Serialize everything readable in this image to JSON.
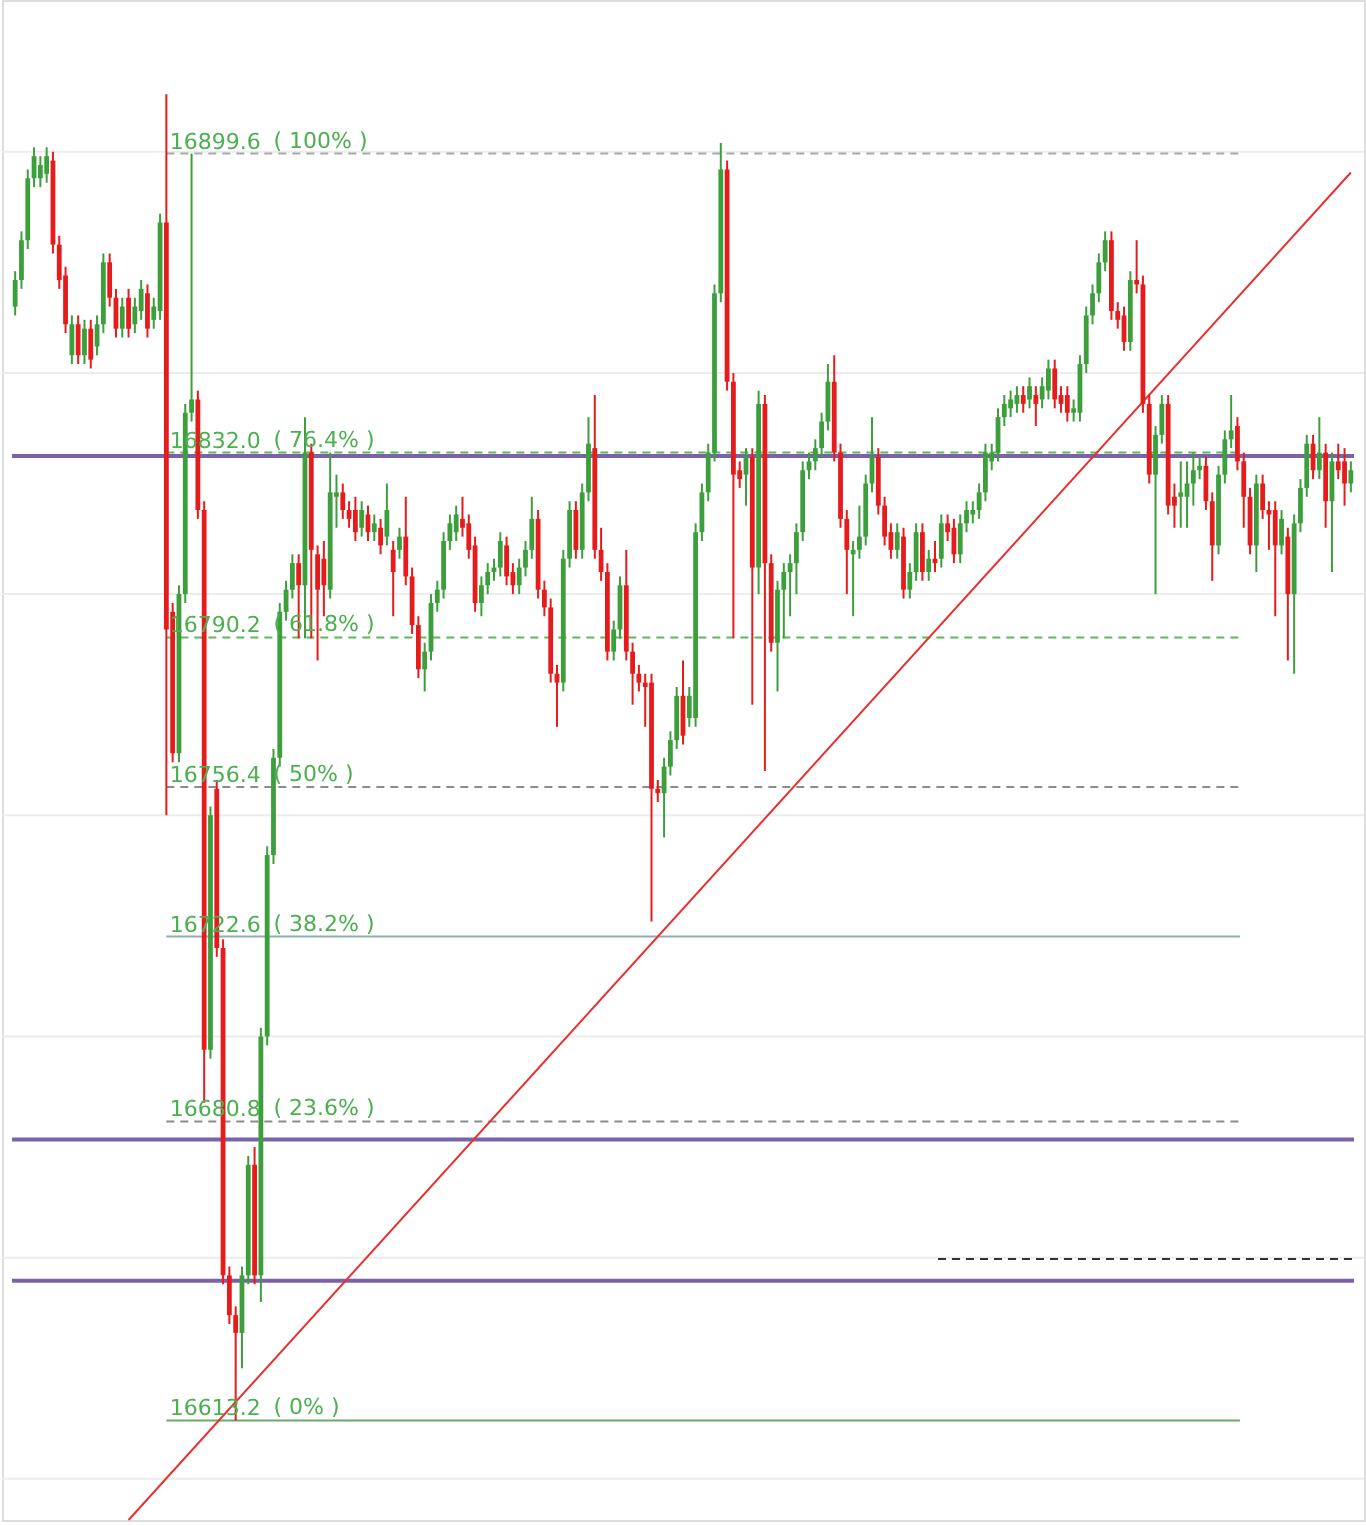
{
  "chart_data": {
    "type": "candlestick",
    "categories": [
      null,
      null,
      null,
      null,
      null,
      null,
      null,
      null,
      null,
      null,
      null,
      null,
      null,
      null,
      null,
      null,
      null,
      null,
      null,
      null,
      null,
      null,
      null,
      null,
      null,
      null,
      null,
      null,
      null,
      null,
      null,
      null,
      null,
      null,
      null,
      null,
      null,
      null,
      null,
      null,
      null,
      null,
      null,
      null,
      null,
      null,
      null,
      null,
      null,
      null,
      null,
      null,
      null,
      null,
      null,
      null,
      null,
      null,
      null,
      null,
      null,
      null,
      null,
      null,
      null,
      null,
      null,
      null,
      null,
      null,
      null,
      null,
      null,
      null,
      null,
      null,
      null,
      null,
      null,
      null,
      null,
      null,
      null,
      null,
      null,
      null,
      null,
      null,
      null,
      null,
      null,
      null,
      null,
      null,
      null,
      null,
      null,
      null,
      null,
      null,
      null,
      null,
      null,
      null,
      null,
      null,
      null,
      null,
      null,
      null,
      null,
      null,
      null,
      null,
      null,
      null,
      null,
      null,
      null,
      null,
      null,
      null,
      null,
      null,
      null,
      null,
      null,
      null,
      null,
      null,
      null,
      null,
      null,
      null,
      null,
      null,
      null,
      null,
      null,
      null,
      null,
      null,
      null,
      null,
      null,
      null,
      null,
      null,
      null,
      null,
      null,
      null,
      null,
      null,
      null,
      null,
      null,
      null,
      null,
      null,
      null,
      null,
      null,
      null,
      null,
      null,
      null,
      null,
      null,
      null,
      null,
      null,
      null,
      null,
      null,
      null,
      null,
      null,
      null,
      null,
      null,
      null,
      null,
      null,
      null,
      null,
      null,
      null,
      null,
      null,
      null,
      null,
      null,
      null,
      null,
      null,
      null,
      null,
      null,
      null,
      null,
      null,
      null,
      null,
      null,
      null,
      null,
      null,
      null,
      null,
      null,
      null,
      null
    ],
    "ohlc": [
      [
        16865,
        16873,
        16863,
        16871
      ],
      [
        16871,
        16882,
        16869,
        16880
      ],
      [
        16880,
        16896,
        16878,
        16894
      ],
      [
        16894,
        16901,
        16892,
        16899
      ],
      [
        16894,
        16899,
        16892,
        16897
      ],
      [
        16895,
        16901,
        16893,
        16899
      ],
      [
        16898,
        16900,
        16877,
        16879
      ],
      [
        16879,
        16881,
        16869,
        16871
      ],
      [
        16872,
        16874,
        16859,
        16861
      ],
      [
        16854,
        16863,
        16852,
        16861
      ],
      [
        16861,
        16863,
        16852,
        16854
      ],
      [
        16854,
        16862,
        16852,
        16860
      ],
      [
        16860,
        16862,
        16851,
        16853
      ],
      [
        16856,
        16863,
        16854,
        16861
      ],
      [
        16861,
        16877,
        16859,
        16875
      ],
      [
        16875,
        16877,
        16865,
        16867
      ],
      [
        16867,
        16869,
        16858,
        16860
      ],
      [
        16860,
        16867,
        16858,
        16865
      ],
      [
        16867,
        16869,
        16858,
        16860
      ],
      [
        16861,
        16867,
        16859,
        16865
      ],
      [
        16864,
        16871,
        16862,
        16869
      ],
      [
        16868,
        16870,
        16858,
        16860
      ],
      [
        16862,
        16867,
        16860,
        16865
      ],
      [
        16864,
        16886,
        16862,
        16884
      ],
      [
        16884,
        16913,
        16750,
        16792
      ],
      [
        16796,
        16798,
        16762,
        16764
      ],
      [
        16764,
        16802,
        16762,
        16800
      ],
      [
        16800,
        16843,
        16798,
        16841
      ],
      [
        16841,
        16899.6,
        16839,
        16844
      ],
      [
        16844,
        16846,
        16817,
        16819
      ],
      [
        16819,
        16821,
        16685,
        16697
      ],
      [
        16697,
        16752,
        16695,
        16750
      ],
      [
        16756,
        16758,
        16718,
        16720
      ],
      [
        16720,
        16722,
        16644,
        16646
      ],
      [
        16646,
        16648,
        16635,
        16637
      ],
      [
        16637,
        16639,
        16613.2,
        16633
      ],
      [
        16633,
        16648,
        16625,
        16646
      ],
      [
        16646,
        16673,
        16644,
        16671
      ],
      [
        16671,
        16675,
        16644,
        16646
      ],
      [
        16646,
        16702,
        16640,
        16700
      ],
      [
        16700,
        16743,
        16698,
        16741
      ],
      [
        16741,
        16765,
        16739,
        16763
      ],
      [
        16763,
        16798,
        16761,
        16796
      ],
      [
        16796,
        16803,
        16794,
        16801
      ],
      [
        16801,
        16809,
        16799,
        16807
      ],
      [
        16807,
        16809,
        16790,
        16802
      ],
      [
        16802,
        16840,
        16790,
        16832
      ],
      [
        16832,
        16834,
        16790,
        16810
      ],
      [
        16809,
        16811,
        16785,
        16801
      ],
      [
        16808,
        16812,
        16795,
        16802
      ],
      [
        16801,
        16832,
        16799,
        16823
      ],
      [
        16822,
        16827,
        16815,
        16823
      ],
      [
        16823,
        16825,
        16817,
        16819
      ],
      [
        16819,
        16821,
        16815,
        16817
      ],
      [
        16819,
        16822,
        16812,
        16814
      ],
      [
        16815,
        16821,
        16813,
        16819
      ],
      [
        16818,
        16820,
        16812,
        16814
      ],
      [
        16814,
        16818,
        16812,
        16816
      ],
      [
        16815,
        16817,
        16809,
        16811
      ],
      [
        16813,
        16825,
        16811,
        16819
      ],
      [
        16810,
        16812,
        16795,
        16805
      ],
      [
        16810,
        16815,
        16808,
        16813
      ],
      [
        16813,
        16822,
        16802,
        16804
      ],
      [
        16804,
        16806,
        16791,
        16793
      ],
      [
        16793,
        16795,
        16781,
        16783
      ],
      [
        16783,
        16789,
        16778,
        16787
      ],
      [
        16787,
        16800,
        16785,
        16798
      ],
      [
        16798,
        16803,
        16796,
        16801
      ],
      [
        16801,
        16814,
        16799,
        16812
      ],
      [
        16812,
        16818,
        16810,
        16816
      ],
      [
        16814,
        16820,
        16812,
        16818
      ],
      [
        16817,
        16822,
        16813,
        16815
      ],
      [
        16816,
        16818,
        16808,
        16810
      ],
      [
        16811,
        16813,
        16796,
        16798
      ],
      [
        16798,
        16804,
        16795,
        16802
      ],
      [
        16802,
        16807,
        16800,
        16805
      ],
      [
        16805,
        16808,
        16803,
        16806
      ],
      [
        16806,
        16814,
        16804,
        16812
      ],
      [
        16811,
        16813,
        16802,
        16804
      ],
      [
        16805,
        16807,
        16800,
        16802
      ],
      [
        16802,
        16808,
        16800,
        16806
      ],
      [
        16806,
        16812,
        16804,
        16810
      ],
      [
        16810,
        16822,
        16808,
        16817
      ],
      [
        16817,
        16819,
        16799,
        16801
      ],
      [
        16801,
        16803,
        16795,
        16797
      ],
      [
        16797,
        16799,
        16780,
        16782
      ],
      [
        16782,
        16784,
        16770,
        16780
      ],
      [
        16780,
        16810,
        16778,
        16808
      ],
      [
        16808,
        16821,
        16806,
        16819
      ],
      [
        16819,
        16821,
        16808,
        16810
      ],
      [
        16810,
        16825,
        16808,
        16823
      ],
      [
        16823,
        16840,
        16821,
        16834
      ],
      [
        16833,
        16845,
        16808,
        16810
      ],
      [
        16810,
        16815,
        16803,
        16805
      ],
      [
        16805,
        16807,
        16785,
        16787
      ],
      [
        16787,
        16794,
        16785,
        16792
      ],
      [
        16792,
        16804,
        16790,
        16802
      ],
      [
        16802,
        16810,
        16785,
        16787
      ],
      [
        16787,
        16789,
        16775,
        16782
      ],
      [
        16782,
        16784,
        16778,
        16780
      ],
      [
        16780,
        16782,
        16770,
        16779
      ],
      [
        16780,
        16782,
        16726,
        16756
      ],
      [
        16756,
        16758,
        16753,
        16755
      ],
      [
        16755,
        16763,
        16745,
        16761
      ],
      [
        16761,
        16769,
        16759,
        16767
      ],
      [
        16767,
        16779,
        16765,
        16777
      ],
      [
        16777,
        16785,
        16766,
        16768
      ],
      [
        16772,
        16779,
        16770,
        16777
      ],
      [
        16772,
        16816,
        16770,
        16814
      ],
      [
        16814,
        16825,
        16812,
        16823
      ],
      [
        16823,
        16834,
        16821,
        16832
      ],
      [
        16832,
        16870,
        16830,
        16868
      ],
      [
        16868,
        16902,
        16866,
        16896
      ],
      [
        16896,
        16898,
        16846,
        16848
      ],
      [
        16848,
        16850,
        16790,
        16827
      ],
      [
        16828,
        16830,
        16824,
        16826
      ],
      [
        16827,
        16833,
        16820,
        16831
      ],
      [
        16831,
        16833,
        16775,
        16806
      ],
      [
        16806,
        16846,
        16800,
        16843
      ],
      [
        16843,
        16845,
        16760,
        16807
      ],
      [
        16807,
        16809,
        16787,
        16789
      ],
      [
        16789,
        16803,
        16778,
        16801
      ],
      [
        16801,
        16807,
        16790,
        16805
      ],
      [
        16805,
        16809,
        16795,
        16807
      ],
      [
        16807,
        16816,
        16800,
        16814
      ],
      [
        16814,
        16830,
        16812,
        16828
      ],
      [
        16828,
        16832,
        16826,
        16830
      ],
      [
        16830,
        16835,
        16828,
        16833
      ],
      [
        16833,
        16841,
        16831,
        16839
      ],
      [
        16839,
        16852,
        16837,
        16848
      ],
      [
        16848,
        16854,
        16830,
        16832
      ],
      [
        16832,
        16834,
        16815,
        16817
      ],
      [
        16817,
        16819,
        16800,
        16810
      ],
      [
        16809,
        16812,
        16795,
        16810
      ],
      [
        16810,
        16820,
        16808,
        16813
      ],
      [
        16813,
        16827,
        16811,
        16825
      ],
      [
        16825,
        16840,
        16823,
        16831
      ],
      [
        16831,
        16833,
        16818,
        16820
      ],
      [
        16820,
        16822,
        16811,
        16813
      ],
      [
        16814,
        16816,
        16808,
        16810
      ],
      [
        16810,
        16816,
        16808,
        16814
      ],
      [
        16813,
        16815,
        16799,
        16801
      ],
      [
        16801,
        16807,
        16799,
        16805
      ],
      [
        16805,
        16816,
        16803,
        16814
      ],
      [
        16814,
        16816,
        16803,
        16805
      ],
      [
        16805,
        16810,
        16803,
        16808
      ],
      [
        16808,
        16812,
        16805,
        16807
      ],
      [
        16808,
        16818,
        16806,
        16816
      ],
      [
        16816,
        16818,
        16812,
        16814
      ],
      [
        16815,
        16817,
        16807,
        16809
      ],
      [
        16809,
        16818,
        16807,
        16816
      ],
      [
        16816,
        16821,
        16814,
        16819
      ],
      [
        16818,
        16821,
        16816,
        16819
      ],
      [
        16819,
        16825,
        16817,
        16823
      ],
      [
        16823,
        16834,
        16821,
        16832
      ],
      [
        16830,
        16834,
        16828,
        16832
      ],
      [
        16832,
        16842,
        16830,
        16840
      ],
      [
        16840,
        16845,
        16838,
        16843
      ],
      [
        16842,
        16846,
        16840,
        16844
      ],
      [
        16843,
        16847,
        16841,
        16845
      ],
      [
        16845,
        16847,
        16841,
        16843
      ],
      [
        16844,
        16849,
        16842,
        16847
      ],
      [
        16845,
        16847,
        16838,
        16843
      ],
      [
        16844,
        16849,
        16842,
        16847
      ],
      [
        16846,
        16853,
        16844,
        16851
      ],
      [
        16851,
        16853,
        16842,
        16844
      ],
      [
        16845,
        16847,
        16841,
        16843
      ],
      [
        16845,
        16847,
        16839,
        16841
      ],
      [
        16841,
        16844,
        16839,
        16842
      ],
      [
        16841,
        16854,
        16839,
        16852
      ],
      [
        16852,
        16865,
        16850,
        16863
      ],
      [
        16863,
        16870,
        16861,
        16868
      ],
      [
        16868,
        16877,
        16866,
        16875
      ],
      [
        16875,
        16882,
        16873,
        16880
      ],
      [
        16880,
        16882,
        16862,
        16864
      ],
      [
        16864,
        16866,
        16860,
        16862
      ],
      [
        16863,
        16865,
        16855,
        16857
      ],
      [
        16857,
        16873,
        16855,
        16871
      ],
      [
        16871,
        16880,
        16868,
        16870
      ],
      [
        16870,
        16872,
        16841,
        16843
      ],
      [
        16843,
        16845,
        16825,
        16827
      ],
      [
        16827,
        16838,
        16800,
        16836
      ],
      [
        16836,
        16845,
        16834,
        16843
      ],
      [
        16843,
        16845,
        16818,
        16820
      ],
      [
        16822,
        16825,
        16815,
        16820
      ],
      [
        16822,
        16830,
        16815,
        16823
      ],
      [
        16822,
        16830,
        16815,
        16825
      ],
      [
        16825,
        16832,
        16820,
        16828
      ],
      [
        16828,
        16831,
        16826,
        16829
      ],
      [
        16829,
        16831,
        16819,
        16821
      ],
      [
        16821,
        16823,
        16803,
        16811
      ],
      [
        16811,
        16829,
        16809,
        16827
      ],
      [
        16827,
        16837,
        16825,
        16835
      ],
      [
        16835,
        16845,
        16833,
        16837
      ],
      [
        16838,
        16840,
        16828,
        16830
      ],
      [
        16830,
        16832,
        16815,
        16822
      ],
      [
        16822,
        16824,
        16809,
        16811
      ],
      [
        16811,
        16827,
        16805,
        16825
      ],
      [
        16825,
        16827,
        16817,
        16819
      ],
      [
        16819,
        16821,
        16810,
        16818
      ],
      [
        16819,
        16821,
        16795,
        16811
      ],
      [
        16811,
        16819,
        16809,
        16817
      ],
      [
        16813,
        16815,
        16785,
        16800
      ],
      [
        16800,
        16818,
        16782,
        16816
      ],
      [
        16816,
        16826,
        16814,
        16824
      ],
      [
        16824,
        16836,
        16822,
        16834
      ],
      [
        16834,
        16836,
        16826,
        16828
      ],
      [
        16828,
        16840,
        16826,
        16832
      ],
      [
        16832,
        16834,
        16815,
        16821
      ],
      [
        16821,
        16832,
        16805,
        16830
      ],
      [
        16830,
        16834,
        16826,
        16828
      ],
      [
        16830,
        16833,
        16820,
        16825
      ],
      [
        16825,
        16830,
        16823,
        16828
      ]
    ],
    "colors": [
      "#3c9f3c",
      "#3c9f3c",
      "#3c9f3c",
      "#3c9f3c",
      "#3c9f3c",
      "#3c9f3c",
      "#e61c1c",
      "#e61c1c",
      "#e61c1c",
      "#3c9f3c",
      "#e61c1c",
      "#3c9f3c",
      "#e61c1c",
      "#3c9f3c",
      "#3c9f3c",
      "#e61c1c",
      "#e61c1c",
      "#3c9f3c",
      "#e61c1c",
      "#3c9f3c",
      "#3c9f3c",
      "#e61c1c",
      "#3c9f3c",
      "#3c9f3c",
      "#e61c1c",
      "#e61c1c",
      "#3c9f3c",
      "#3c9f3c",
      "#3c9f3c",
      "#e61c1c",
      "#e61c1c",
      "#3c9f3c",
      "#e61c1c",
      "#e61c1c",
      "#e61c1c",
      "#e61c1c",
      "#3c9f3c",
      "#3c9f3c",
      "#e61c1c",
      "#3c9f3c",
      "#3c9f3c",
      "#3c9f3c",
      "#3c9f3c",
      "#3c9f3c",
      "#3c9f3c",
      "#e61c1c",
      "#3c9f3c",
      "#e61c1c",
      "#e61c1c",
      "#e61c1c",
      "#3c9f3c",
      "#3c9f3c",
      "#e61c1c",
      "#e61c1c",
      "#e61c1c",
      "#3c9f3c",
      "#e61c1c",
      "#3c9f3c",
      "#e61c1c",
      "#3c9f3c",
      "#e61c1c",
      "#3c9f3c",
      "#e61c1c",
      "#e61c1c",
      "#e61c1c",
      "#3c9f3c",
      "#3c9f3c",
      "#3c9f3c",
      "#3c9f3c",
      "#3c9f3c",
      "#3c9f3c",
      "#e61c1c",
      "#e61c1c",
      "#e61c1c",
      "#3c9f3c",
      "#3c9f3c",
      "#3c9f3c",
      "#3c9f3c",
      "#e61c1c",
      "#e61c1c",
      "#3c9f3c",
      "#3c9f3c",
      "#3c9f3c",
      "#e61c1c",
      "#e61c1c",
      "#e61c1c",
      "#e61c1c",
      "#3c9f3c",
      "#3c9f3c",
      "#e61c1c",
      "#3c9f3c",
      "#3c9f3c",
      "#e61c1c",
      "#e61c1c",
      "#e61c1c",
      "#3c9f3c",
      "#3c9f3c",
      "#e61c1c",
      "#e61c1c",
      "#e61c1c",
      "#e61c1c",
      "#e61c1c",
      "#e61c1c",
      "#3c9f3c",
      "#3c9f3c",
      "#3c9f3c",
      "#e61c1c",
      "#3c9f3c",
      "#3c9f3c",
      "#3c9f3c",
      "#3c9f3c",
      "#3c9f3c",
      "#3c9f3c",
      "#e61c1c",
      "#e61c1c",
      "#e61c1c",
      "#3c9f3c",
      "#e61c1c",
      "#3c9f3c",
      "#e61c1c",
      "#e61c1c",
      "#3c9f3c",
      "#3c9f3c",
      "#3c9f3c",
      "#3c9f3c",
      "#3c9f3c",
      "#3c9f3c",
      "#3c9f3c",
      "#3c9f3c",
      "#3c9f3c",
      "#e61c1c",
      "#e61c1c",
      "#e61c1c",
      "#3c9f3c",
      "#3c9f3c",
      "#3c9f3c",
      "#3c9f3c",
      "#e61c1c",
      "#e61c1c",
      "#e61c1c",
      "#3c9f3c",
      "#e61c1c",
      "#3c9f3c",
      "#3c9f3c",
      "#e61c1c",
      "#3c9f3c",
      "#e61c1c",
      "#3c9f3c",
      "#e61c1c",
      "#e61c1c",
      "#3c9f3c",
      "#3c9f3c",
      "#3c9f3c",
      "#3c9f3c",
      "#3c9f3c",
      "#3c9f3c",
      "#3c9f3c",
      "#3c9f3c",
      "#3c9f3c",
      "#3c9f3c",
      "#e61c1c",
      "#3c9f3c",
      "#e61c1c",
      "#3c9f3c",
      "#3c9f3c",
      "#e61c1c",
      "#e61c1c",
      "#e61c1c",
      "#3c9f3c",
      "#3c9f3c",
      "#3c9f3c",
      "#3c9f3c",
      "#3c9f3c",
      "#3c9f3c",
      "#e61c1c",
      "#e61c1c",
      "#e61c1c",
      "#3c9f3c",
      "#e61c1c",
      "#e61c1c",
      "#e61c1c",
      "#3c9f3c",
      "#3c9f3c",
      "#e61c1c",
      "#e61c1c",
      "#3c9f3c",
      "#3c9f3c",
      "#3c9f3c",
      "#3c9f3c",
      "#e61c1c",
      "#e61c1c",
      "#3c9f3c",
      "#3c9f3c",
      "#3c9f3c",
      "#e61c1c",
      "#e61c1c",
      "#e61c1c",
      "#3c9f3c",
      "#e61c1c",
      "#e61c1c",
      "#e61c1c",
      "#3c9f3c",
      "#e61c1c",
      "#3c9f3c",
      "#3c9f3c",
      "#3c9f3c",
      "#e61c1c",
      "#3c9f3c",
      "#e61c1c",
      "#3c9f3c",
      "#e61c1c",
      "#e61c1c",
      "#3c9f3c"
    ],
    "ylim": [
      16590.7,
      16934.3
    ],
    "yticks": [
      {
        "value": 16600,
        "label": null
      },
      {
        "value": 16650,
        "label": null
      },
      {
        "value": 16700,
        "label": null
      },
      {
        "value": 16750,
        "label": null
      },
      {
        "value": 16800,
        "label": null
      },
      {
        "value": 16850,
        "label": null
      },
      {
        "value": 16900,
        "label": null
      },
      16899.6,
      {
        "value": 16832.0,
        "label": "16832.0"
      },
      16790.2,
      16756.4,
      16722.6,
      16680.8,
      16613.2
    ],
    "annotations": [
      {
        "text": "( 100% )",
        "y": 16899.6
      },
      {
        "text": "( 76.4% )",
        "y": 16832.0
      },
      {
        "text": "( 61.8% )",
        "y": 16790.2
      },
      {
        "text": "( 50% )",
        "y": 16756.4
      },
      {
        "text": "( 38.2% )",
        "y": 16722.6
      },
      {
        "text": "( 23.6% )",
        "y": 16680.8
      },
      {
        "text": "( 0% )",
        "y": 16613.2
      }
    ],
    "tick_labels": "y",
    "grid": "y",
    "series": [
      {
        "type": "line",
        "color": "#e8312f",
        "values": [
          null,
          null,
          null,
          null,
          null,
          null,
          null,
          null,
          null,
          null,
          null,
          null,
          null,
          null,
          null,
          null,
          null,
          null,
          16590.7,
          null,
          null,
          null,
          null,
          null,
          null,
          null,
          null,
          null,
          null,
          null,
          null,
          null,
          null,
          null,
          null,
          null,
          null,
          null,
          null,
          null,
          null,
          null,
          null,
          null,
          null,
          null,
          null,
          null,
          null,
          null,
          null,
          null,
          null,
          null,
          null,
          null,
          null,
          null,
          null,
          null,
          null,
          null,
          null,
          null,
          null,
          null,
          null,
          null,
          null,
          null,
          null,
          null,
          null,
          null,
          null,
          null,
          null,
          null,
          null,
          null,
          null,
          null,
          null,
          null,
          null,
          null,
          null,
          null,
          null,
          null,
          null,
          null,
          null,
          null,
          null,
          null,
          null,
          null,
          null,
          null,
          null,
          null,
          null,
          null,
          null,
          null,
          null,
          null,
          null,
          null,
          null,
          null,
          null,
          null,
          null,
          null,
          null,
          null,
          null,
          null,
          null,
          null,
          null,
          null,
          null,
          null,
          null,
          null,
          null,
          null,
          null,
          null,
          null,
          null,
          null,
          null,
          null,
          null,
          null,
          null,
          null,
          null,
          null,
          null,
          null,
          null,
          null,
          null,
          null,
          null,
          null,
          null,
          null,
          null,
          null,
          null,
          null,
          null,
          null,
          null,
          null,
          null,
          null,
          null,
          null,
          null,
          null,
          null,
          null,
          null,
          null,
          null,
          null,
          null,
          null,
          null,
          null,
          null,
          null,
          null,
          null,
          null,
          null,
          null,
          null,
          null,
          null,
          null,
          null,
          null,
          null,
          null,
          null,
          null,
          null,
          null,
          null,
          null,
          null,
          null,
          null,
          null,
          null,
          null,
          null,
          null,
          null,
          null,
          null,
          null,
          null,
          null,
          16895.3
        ]
      }
    ],
    "ref_lines": [
      {
        "axis": "y",
        "value": 16831.2,
        "color": "#7b62a8",
        "line_style": "solid"
      },
      {
        "axis": "y",
        "value": 16676.7,
        "color": "#7b62a8",
        "line_style": "solid"
      },
      {
        "axis": "y",
        "value": 16644.8,
        "color": "#7b62a8",
        "line_style": "solid"
      },
      {
        "axis": "y",
        "value": 16649.7,
        "color": "#333333",
        "line_style": "dashed"
      },
      {
        "axis": "y",
        "value": 16899.6,
        "color": "#a8a8a8",
        "line_style": "dashed"
      },
      {
        "axis": "y",
        "value": 16832.0,
        "color": "#5cb85c",
        "line_style": "dashed"
      },
      {
        "axis": "y",
        "value": 16790.2,
        "color": "#5cb85c",
        "line_style": "dashed"
      },
      {
        "axis": "y",
        "value": 16756.4,
        "color": "#8c8c8c",
        "line_style": "dashed"
      },
      {
        "axis": "y",
        "value": 16722.6,
        "color": "#8fb0a8",
        "line_style": "solid"
      },
      {
        "axis": "y",
        "value": 16680.8,
        "color": "#8c8c8c",
        "line_style": "dashed"
      },
      {
        "axis": "y",
        "value": 16613.2,
        "color": "#6aaa6a",
        "line_style": "solid"
      }
    ]
  }
}
